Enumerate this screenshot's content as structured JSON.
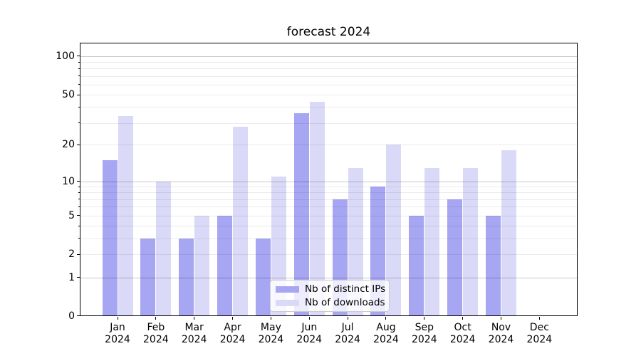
{
  "chart_data": {
    "type": "bar",
    "title": "forecast 2024",
    "categories": [
      "Jan",
      "Feb",
      "Mar",
      "Apr",
      "May",
      "Jun",
      "Jul",
      "Aug",
      "Sep",
      "Oct",
      "Nov",
      "Dec"
    ],
    "category_year": "2024",
    "series": [
      {
        "name": "Nb of distinct IPs",
        "color": "#a6a6f2",
        "values": [
          15,
          3,
          3,
          5,
          3,
          36,
          7,
          9,
          5,
          7,
          5,
          0
        ]
      },
      {
        "name": "Nb of downloads",
        "color": "#dadaf8",
        "values": [
          34,
          10,
          5,
          28,
          11,
          44,
          13,
          20,
          13,
          13,
          18,
          0
        ]
      }
    ],
    "yscale": "log1p",
    "ylim": [
      0,
      127
    ],
    "yticks": [
      0,
      1,
      2,
      5,
      10,
      20,
      50,
      100
    ],
    "yticks_minor": [
      3,
      4,
      6,
      7,
      8,
      9,
      30,
      40,
      60,
      70,
      80,
      90
    ],
    "grid_major": [
      1,
      10,
      100
    ],
    "grid_minor": [
      2,
      3,
      4,
      5,
      6,
      7,
      8,
      9,
      20,
      30,
      40,
      50,
      60,
      70,
      80,
      90
    ],
    "grid": true,
    "legend_position": "lower center"
  },
  "colors": {
    "axis": "#000000",
    "grid_major": "rgba(0,0,0,0.22)",
    "grid_minor": "rgba(0,0,0,0.08)",
    "legend_border": "#cccccc",
    "legend_background": "rgba(255,255,255,0.8)"
  }
}
